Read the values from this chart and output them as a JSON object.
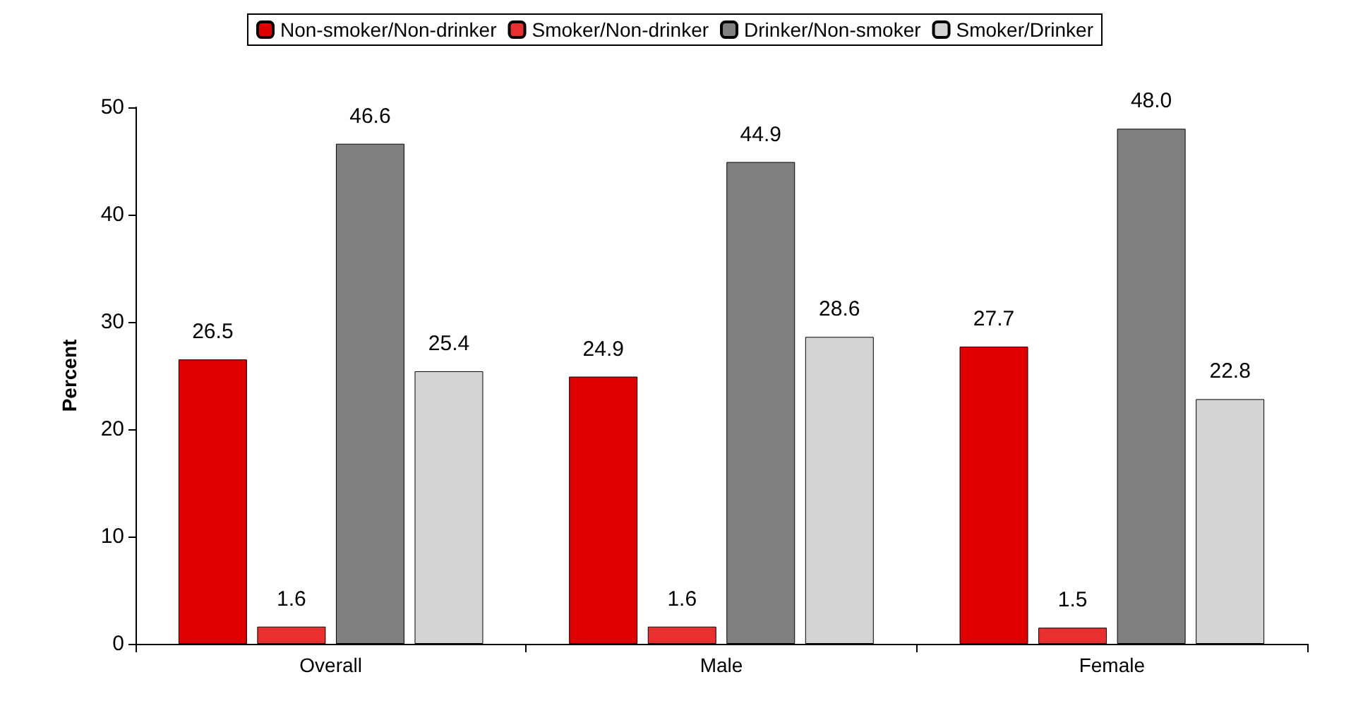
{
  "chart_data": {
    "type": "bar",
    "ylabel": "Percent",
    "categories": [
      "Overall",
      "Male",
      "Female"
    ],
    "series": [
      {
        "name": "Non-smoker/Non-drinker",
        "color": "#e00000",
        "values": [
          26.5,
          24.9,
          27.7
        ],
        "value_labels": [
          "26.5",
          "24.9",
          "27.7"
        ]
      },
      {
        "name": "Smoker/Non-drinker",
        "color": "#e83030",
        "values": [
          1.6,
          1.6,
          1.5
        ],
        "value_labels": [
          "1.6",
          "1.6",
          "1.5"
        ]
      },
      {
        "name": "Drinker/Non-smoker",
        "color": "#808080",
        "values": [
          46.6,
          44.9,
          48.0
        ],
        "value_labels": [
          "46.6",
          "44.9",
          "48.0"
        ]
      },
      {
        "name": "Smoker/Drinker",
        "color": "#d4d4d4",
        "values": [
          25.4,
          28.6,
          22.8
        ],
        "value_labels": [
          "25.4",
          "28.6",
          "22.8"
        ]
      }
    ],
    "ylim": [
      0,
      50
    ],
    "yticks": [
      0,
      10,
      20,
      30,
      40,
      50
    ],
    "grid": false,
    "legend": "top"
  }
}
